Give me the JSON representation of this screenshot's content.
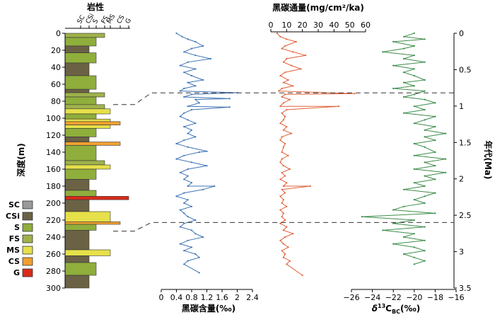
{
  "chart_data": [
    {
      "type": "table",
      "panel": "lithology",
      "title": "岩性",
      "ylabel": "深度(m)",
      "ylim": [
        0,
        300
      ],
      "yticks": [
        0,
        20,
        40,
        60,
        80,
        100,
        120,
        140,
        160,
        180,
        200,
        220,
        240,
        260,
        280,
        300
      ],
      "grain_scale": [
        "SC",
        "CSi",
        "S",
        "FS",
        "MS",
        "CS",
        "G"
      ],
      "legend": [
        {
          "code": "SC",
          "color": "#9a9a9a"
        },
        {
          "code": "CSi",
          "color": "#6b6245"
        },
        {
          "code": "S",
          "color": "#8fae3c"
        },
        {
          "code": "FS",
          "color": "#9fb24a"
        },
        {
          "code": "MS",
          "color": "#e6e04a"
        },
        {
          "code": "CS",
          "color": "#f0a030"
        },
        {
          "code": "G",
          "color": "#d82a1a"
        }
      ],
      "layers": [
        {
          "top": 0,
          "bottom": 5,
          "code": "FS"
        },
        {
          "top": 5,
          "bottom": 15,
          "code": "S"
        },
        {
          "top": 15,
          "bottom": 23,
          "code": "CSi"
        },
        {
          "top": 23,
          "bottom": 35,
          "code": "S"
        },
        {
          "top": 35,
          "bottom": 50,
          "code": "CSi"
        },
        {
          "top": 50,
          "bottom": 66,
          "code": "S"
        },
        {
          "top": 66,
          "bottom": 70,
          "code": "CSi"
        },
        {
          "top": 70,
          "bottom": 75,
          "code": "FS"
        },
        {
          "top": 75,
          "bottom": 84,
          "code": "S"
        },
        {
          "top": 84,
          "bottom": 89,
          "code": "FS"
        },
        {
          "top": 89,
          "bottom": 95,
          "code": "MS"
        },
        {
          "top": 95,
          "bottom": 101,
          "code": "S"
        },
        {
          "top": 101,
          "bottom": 104,
          "code": "MS"
        },
        {
          "top": 104,
          "bottom": 108,
          "code": "CS"
        },
        {
          "top": 108,
          "bottom": 112,
          "code": "MS"
        },
        {
          "top": 112,
          "bottom": 122,
          "code": "S"
        },
        {
          "top": 122,
          "bottom": 128,
          "code": "CSi"
        },
        {
          "top": 128,
          "bottom": 132,
          "code": "CS"
        },
        {
          "top": 132,
          "bottom": 150,
          "code": "S"
        },
        {
          "top": 150,
          "bottom": 155,
          "code": "FS"
        },
        {
          "top": 155,
          "bottom": 160,
          "code": "MS"
        },
        {
          "top": 160,
          "bottom": 172,
          "code": "S"
        },
        {
          "top": 172,
          "bottom": 185,
          "code": "CSi"
        },
        {
          "top": 185,
          "bottom": 192,
          "code": "S"
        },
        {
          "top": 192,
          "bottom": 196,
          "code": "G"
        },
        {
          "top": 196,
          "bottom": 210,
          "code": "CSi"
        },
        {
          "top": 210,
          "bottom": 222,
          "code": "MS"
        },
        {
          "top": 222,
          "bottom": 225,
          "code": "CS"
        },
        {
          "top": 225,
          "bottom": 232,
          "code": "S"
        },
        {
          "top": 232,
          "bottom": 255,
          "code": "CSi"
        },
        {
          "top": 255,
          "bottom": 262,
          "code": "MS"
        },
        {
          "top": 262,
          "bottom": 270,
          "code": "CSi"
        },
        {
          "top": 270,
          "bottom": 285,
          "code": "S"
        },
        {
          "top": 285,
          "bottom": 300,
          "code": "CSi"
        }
      ]
    },
    {
      "type": "line",
      "panel": "black-carbon-content",
      "xlabel": "黑碳含量(‰)",
      "xlim": [
        0,
        2.4
      ],
      "xticks": [
        0,
        0.4,
        0.8,
        1.2,
        1.6,
        2.0,
        2.4
      ],
      "color": "#3f74b5",
      "x": [
        0.4,
        0.55,
        0.7,
        0.9,
        1.1,
        0.8,
        0.6,
        0.9,
        1.3,
        0.7,
        0.5,
        0.9,
        0.6,
        0.8,
        1.1,
        0.7,
        0.9,
        0.6,
        0.5,
        0.8,
        0.6,
        0.9,
        1.0,
        0.7,
        0.8,
        0.6,
        0.5,
        0.7,
        0.9,
        0.6,
        0.8,
        0.7,
        0.9,
        0.6,
        0.4,
        0.7,
        1.0,
        0.6,
        0.4,
        0.8,
        1.2,
        0.7,
        0.5,
        0.7,
        0.6,
        0.8,
        0.7,
        1.1,
        0.6,
        0.4,
        0.7,
        0.6,
        0.8,
        0.5,
        0.6,
        0.7,
        0.9,
        0.6,
        0.5,
        0.8,
        0.9,
        1.1,
        0.7,
        0.5,
        0.8,
        0.6,
        0.9,
        1.0,
        0.7,
        0.6
      ],
      "y": [
        0,
        4,
        7,
        10,
        15,
        18,
        22,
        26,
        30,
        34,
        38,
        42,
        46,
        50,
        55,
        58,
        62,
        65,
        68,
        72,
        75,
        78,
        82,
        86,
        90,
        94,
        98,
        102,
        106,
        110,
        114,
        118,
        122,
        126,
        130,
        134,
        140,
        144,
        148,
        152,
        156,
        160,
        164,
        168,
        172,
        176,
        180,
        184,
        188,
        192,
        196,
        200,
        204,
        208,
        212,
        216,
        220,
        224,
        228,
        232,
        236,
        240,
        244,
        248,
        252,
        256,
        260,
        264,
        268,
        272
      ],
      "spikes": [
        {
          "x": 2.0,
          "y": 70
        },
        {
          "x": 1.8,
          "y": 77
        },
        {
          "x": 1.8,
          "y": 87
        },
        {
          "x": 1.4,
          "y": 180
        },
        {
          "x": 1.2,
          "y": 139
        },
        {
          "x": 1.0,
          "y": 282
        }
      ]
    },
    {
      "type": "line",
      "panel": "black-carbon-flux",
      "title": "黑碳通量(mg/cm²/ka)",
      "xlim": [
        0,
        60
      ],
      "xticks": [
        0,
        10,
        20,
        30,
        40,
        50,
        60
      ],
      "color": "#e2623a",
      "x": [
        4,
        6,
        10,
        16,
        9,
        7,
        14,
        22,
        10,
        8,
        13,
        19,
        9,
        6,
        11,
        8,
        14,
        7,
        5,
        9,
        7,
        12,
        8,
        6,
        10,
        7,
        9,
        8,
        6,
        10,
        8,
        13,
        7,
        6,
        9,
        8,
        7,
        11,
        7,
        6,
        8,
        12,
        7,
        9,
        6,
        10,
        8,
        7,
        9,
        6,
        8,
        7,
        10,
        6,
        8,
        7,
        9,
        6,
        10,
        8,
        14,
        9,
        6,
        8,
        11,
        7,
        9,
        8,
        12,
        10
      ],
      "y": [
        0,
        4,
        7,
        10,
        15,
        18,
        22,
        26,
        30,
        34,
        38,
        42,
        46,
        50,
        55,
        58,
        62,
        65,
        68,
        72,
        75,
        78,
        82,
        86,
        90,
        94,
        98,
        102,
        106,
        110,
        114,
        118,
        122,
        126,
        130,
        134,
        140,
        144,
        148,
        152,
        156,
        160,
        164,
        168,
        172,
        176,
        180,
        184,
        188,
        192,
        196,
        200,
        204,
        208,
        212,
        216,
        220,
        224,
        228,
        232,
        236,
        240,
        244,
        248,
        252,
        256,
        260,
        264,
        268,
        272
      ],
      "spikes": [
        {
          "x": 53,
          "y": 71
        },
        {
          "x": 43,
          "y": 86
        },
        {
          "x": 25,
          "y": 180
        },
        {
          "x": 20,
          "y": 285
        }
      ]
    },
    {
      "type": "line",
      "panel": "d13C-bc",
      "xlabel": "δ¹³C_BC(‰)",
      "ylabel": "年代(Ma)",
      "xlim": [
        -26,
        -16
      ],
      "xticks": [
        -26,
        -24,
        -22,
        -20,
        -18,
        -16
      ],
      "ylim": [
        0,
        3.5
      ],
      "yticks": [
        0,
        0.5,
        1.0,
        1.5,
        2.0,
        2.5,
        3.0,
        3.5
      ],
      "color": "#3d8c4a",
      "x": [
        -20,
        -21,
        -19,
        -22,
        -20,
        -21,
        -23,
        -20,
        -21,
        -19,
        -22,
        -20,
        -21,
        -20,
        -19,
        -21,
        -20,
        -22,
        -19,
        -20,
        -21,
        -19,
        -18,
        -20,
        -19,
        -21,
        -18,
        -19,
        -20,
        -18,
        -19,
        -17,
        -19,
        -18,
        -20,
        -19,
        -18,
        -20,
        -17,
        -19,
        -18,
        -20,
        -17,
        -19,
        -18,
        -20,
        -19,
        -21,
        -18,
        -19,
        -20,
        -19,
        -21,
        -22,
        -18,
        -25,
        -20,
        -22,
        -19,
        -23,
        -20,
        -21,
        -19,
        -22,
        -20,
        -19,
        -21,
        -20,
        -19,
        -20
      ],
      "y": [
        0,
        4,
        7,
        10,
        15,
        18,
        22,
        26,
        30,
        34,
        38,
        42,
        46,
        50,
        55,
        58,
        62,
        65,
        68,
        72,
        75,
        78,
        82,
        86,
        90,
        94,
        98,
        102,
        106,
        110,
        114,
        118,
        122,
        126,
        130,
        134,
        140,
        144,
        148,
        152,
        156,
        160,
        164,
        168,
        172,
        176,
        180,
        184,
        188,
        192,
        196,
        200,
        204,
        208,
        212,
        216,
        220,
        224,
        228,
        232,
        236,
        240,
        244,
        248,
        252,
        256,
        260,
        264,
        268,
        272
      ]
    }
  ],
  "boundaries_ma": [
    0.82,
    2.6
  ],
  "labels": {
    "lith_title": "岩性",
    "depth_axis": "深度(m)",
    "bc_axis": "黑碳含量(‰)",
    "flux_axis": "黑碳通量(mg/cm²/ka)",
    "d13c_axis_prefix": "δ",
    "d13c_axis_sup": "13",
    "d13c_axis_main": "C",
    "d13c_axis_sub": "BC",
    "d13c_axis_unit": "(‰)",
    "age_axis": "年代(Ma)"
  }
}
